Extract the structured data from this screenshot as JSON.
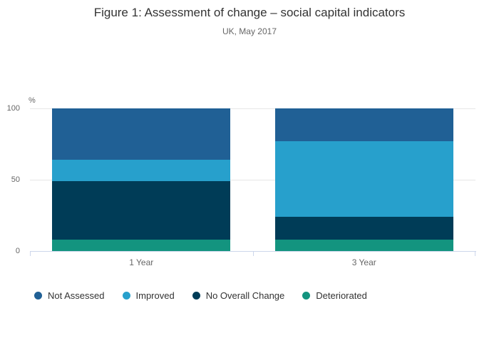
{
  "title": "Figure 1: Assessment of change – social capital indicators",
  "subtitle": "UK, May 2017",
  "chart_data": {
    "type": "bar",
    "stacked": true,
    "orientation": "vertical",
    "title": "Figure 1: Assessment of change – social capital indicators",
    "subtitle": "UK, May 2017",
    "categories": [
      "1 Year",
      "3 Year"
    ],
    "series": [
      {
        "name": "Not Assessed",
        "color": "#206095",
        "values": [
          36,
          23
        ]
      },
      {
        "name": "Improved",
        "color": "#27A0CC",
        "values": [
          15,
          53
        ]
      },
      {
        "name": "No Overall Change",
        "color": "#003C57",
        "values": [
          41,
          16
        ]
      },
      {
        "name": "Deteriorated",
        "color": "#13947F",
        "values": [
          8,
          8
        ]
      }
    ],
    "stack_order_note": "series listed top-to-bottom as drawn in each bar",
    "xlabel": "",
    "ylabel": "%",
    "ylim": [
      0,
      100
    ],
    "yticks": [
      0,
      50,
      100
    ],
    "grid": true,
    "legend_position": "bottom-left"
  },
  "axis_style": {
    "gridline_color": "#e6e6e6",
    "axis_line_color": "#ccd6eb",
    "tick_label_color": "#666666",
    "legend_text_color": "#333333",
    "title_color": "#333333",
    "subtitle_color": "#666666"
  }
}
